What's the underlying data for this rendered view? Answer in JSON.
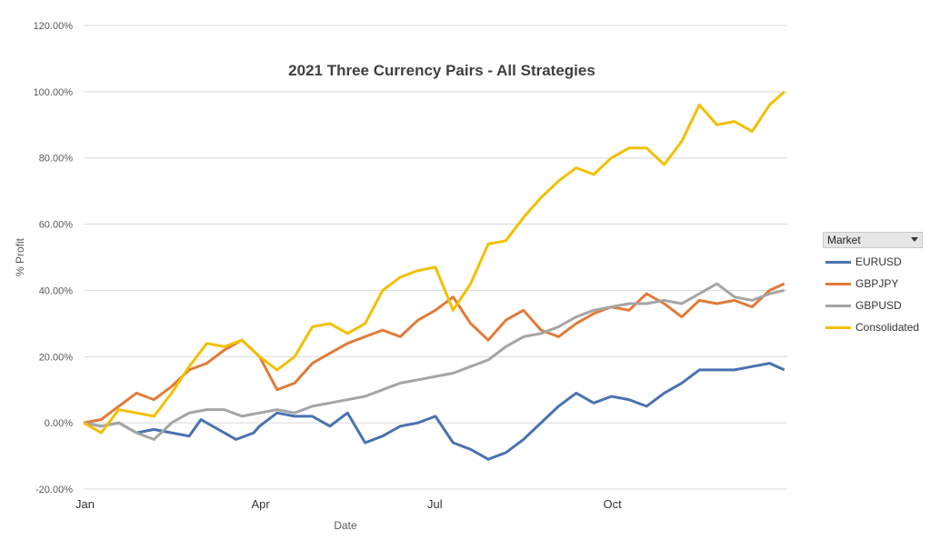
{
  "chart_data": {
    "type": "line",
    "title": "2021  Three Currency Pairs - All Strategies",
    "xlabel": "Date",
    "ylabel": "% Profit",
    "yticks": [
      "120.00%",
      "100.00%",
      "80.00%",
      "60.00%",
      "40.00%",
      "20.00%",
      "0.00%",
      "-20.00%"
    ],
    "ytick_values": [
      120,
      100,
      80,
      60,
      40,
      20,
      0,
      -20
    ],
    "ylim": [
      -20,
      120
    ],
    "xticks": [
      "Jan",
      "Apr",
      "Jul",
      "Oct"
    ],
    "xtick_positions": [
      0,
      3,
      6,
      9
    ],
    "xlim": [
      0,
      12
    ],
    "grid": "horizontal",
    "legend_title": "Market",
    "legend_position": "right",
    "series": [
      {
        "name": "EURUSD",
        "color": "#4a72b0",
        "x": [
          0,
          0.3,
          0.6,
          0.9,
          1.2,
          1.5,
          1.8,
          2.0,
          2.3,
          2.6,
          2.9,
          3.0,
          3.3,
          3.6,
          3.9,
          4.2,
          4.5,
          4.8,
          5.1,
          5.4,
          5.7,
          6.0,
          6.3,
          6.6,
          6.9,
          7.2,
          7.5,
          7.8,
          8.1,
          8.4,
          8.7,
          9.0,
          9.3,
          9.6,
          9.9,
          10.2,
          10.5,
          10.8,
          11.1,
          11.4,
          11.7,
          11.95
        ],
        "values": [
          0,
          -1,
          0,
          -3,
          -2,
          -3,
          -4,
          1,
          -2,
          -5,
          -3,
          -1,
          3,
          2,
          2,
          -1,
          3,
          -6,
          -4,
          -1,
          0,
          2,
          -6,
          -8,
          -11,
          -9,
          -5,
          0,
          5,
          9,
          6,
          8,
          7,
          5,
          9,
          12,
          16,
          16,
          16,
          17,
          18,
          16
        ]
      },
      {
        "name": "GBPJPY",
        "color": "#e07b39",
        "x": [
          0,
          0.3,
          0.6,
          0.9,
          1.2,
          1.5,
          1.8,
          2.1,
          2.4,
          2.7,
          3.0,
          3.3,
          3.6,
          3.9,
          4.2,
          4.5,
          4.8,
          5.1,
          5.4,
          5.7,
          6.0,
          6.3,
          6.6,
          6.9,
          7.2,
          7.5,
          7.8,
          8.1,
          8.4,
          8.7,
          9.0,
          9.3,
          9.6,
          9.9,
          10.2,
          10.5,
          10.8,
          11.1,
          11.4,
          11.7,
          11.95
        ],
        "values": [
          0,
          1,
          5,
          9,
          7,
          11,
          16,
          18,
          22,
          25,
          20,
          10,
          12,
          18,
          21,
          24,
          26,
          28,
          26,
          31,
          34,
          38,
          30,
          25,
          31,
          34,
          28,
          26,
          30,
          33,
          35,
          34,
          39,
          36,
          32,
          37,
          36,
          37,
          35,
          40,
          42
        ]
      },
      {
        "name": "GBPUSD",
        "color": "#a5a5a5",
        "x": [
          0,
          0.3,
          0.6,
          0.9,
          1.2,
          1.5,
          1.8,
          2.1,
          2.4,
          2.7,
          3.0,
          3.3,
          3.6,
          3.9,
          4.2,
          4.5,
          4.8,
          5.1,
          5.4,
          5.7,
          6.0,
          6.3,
          6.6,
          6.9,
          7.2,
          7.5,
          7.8,
          8.1,
          8.4,
          8.7,
          9.0,
          9.3,
          9.6,
          9.9,
          10.2,
          10.5,
          10.8,
          11.1,
          11.4,
          11.7,
          11.95
        ],
        "values": [
          0,
          -1,
          0,
          -3,
          -5,
          0,
          3,
          4,
          4,
          2,
          3,
          4,
          3,
          5,
          6,
          7,
          8,
          10,
          12,
          13,
          14,
          15,
          17,
          19,
          23,
          26,
          27,
          29,
          32,
          34,
          35,
          36,
          36,
          37,
          36,
          39,
          42,
          38,
          37,
          39,
          40
        ]
      },
      {
        "name": "Consolidated",
        "color": "#f2c000",
        "x": [
          0,
          0.3,
          0.6,
          0.9,
          1.2,
          1.5,
          1.8,
          2.1,
          2.4,
          2.7,
          3.0,
          3.3,
          3.6,
          3.9,
          4.2,
          4.5,
          4.8,
          5.1,
          5.4,
          5.7,
          6.0,
          6.3,
          6.6,
          6.9,
          7.2,
          7.5,
          7.8,
          8.1,
          8.4,
          8.7,
          9.0,
          9.3,
          9.6,
          9.9,
          10.2,
          10.5,
          10.8,
          11.1,
          11.4,
          11.7,
          11.95
        ],
        "values": [
          0,
          -3,
          4,
          3,
          2,
          9,
          17,
          24,
          23,
          25,
          20,
          16,
          20,
          29,
          30,
          27,
          30,
          40,
          44,
          46,
          47,
          34,
          42,
          54,
          55,
          62,
          68,
          73,
          77,
          75,
          80,
          83,
          83,
          78,
          85,
          96,
          90,
          91,
          88,
          96,
          100
        ]
      }
    ]
  }
}
